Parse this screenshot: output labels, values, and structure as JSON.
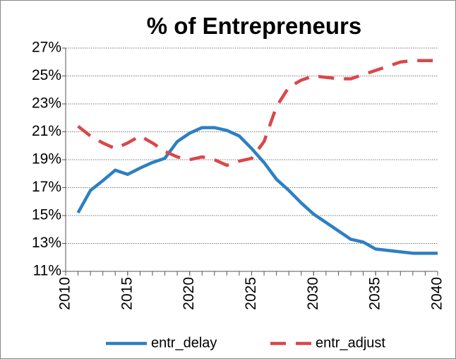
{
  "chart_data": {
    "type": "line",
    "title": "% of Entrepreneurs",
    "x": [
      2011,
      2012,
      2013,
      2014,
      2015,
      2016,
      2017,
      2018,
      2019,
      2020,
      2021,
      2022,
      2023,
      2024,
      2025,
      2026,
      2027,
      2028,
      2029,
      2030,
      2031,
      2032,
      2033,
      2034,
      2035,
      2036,
      2037,
      2038,
      2039,
      2040
    ],
    "series": [
      {
        "name": "entr_delay",
        "color": "#2e7fc2",
        "dash": false,
        "values": [
          15.2,
          16.8,
          17.5,
          18.25,
          17.95,
          18.4,
          18.8,
          19.1,
          20.3,
          20.9,
          21.3,
          21.3,
          21.1,
          20.7,
          19.8,
          18.8,
          17.6,
          16.8,
          15.9,
          15.1,
          14.5,
          13.9,
          13.3,
          13.1,
          12.6,
          12.5,
          12.4,
          12.3,
          12.3,
          12.3
        ]
      },
      {
        "name": "entr_adjust",
        "color": "#d9474a",
        "dash": true,
        "values": [
          21.4,
          20.7,
          20.2,
          19.8,
          20.2,
          20.7,
          20.2,
          19.6,
          19.2,
          19.0,
          19.2,
          19.0,
          18.6,
          18.9,
          19.1,
          20.3,
          22.8,
          24.2,
          24.7,
          25.0,
          24.9,
          24.8,
          24.8,
          25.1,
          25.4,
          25.7,
          26.0,
          26.1,
          26.1,
          26.1
        ]
      }
    ],
    "xlim": [
      2010,
      2040
    ],
    "xticks": [
      2010,
      2015,
      2020,
      2025,
      2030,
      2035,
      2040
    ],
    "ylim": [
      11,
      27
    ],
    "yticks": [
      {
        "value": 11,
        "label": "11%"
      },
      {
        "value": 13,
        "label": "13%"
      },
      {
        "value": 15,
        "label": "15%"
      },
      {
        "value": 17,
        "label": "17%"
      },
      {
        "value": 19,
        "label": "19%"
      },
      {
        "value": 21,
        "label": "21%"
      },
      {
        "value": 23,
        "label": "23%"
      },
      {
        "value": 25,
        "label": "25%"
      },
      {
        "value": 27,
        "label": "27%"
      }
    ],
    "grid": true,
    "legend": "bottom"
  }
}
